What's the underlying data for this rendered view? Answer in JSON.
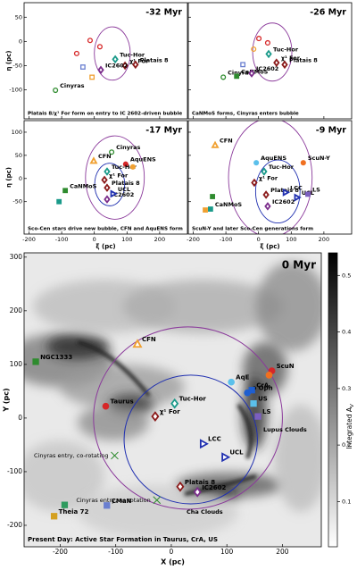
{
  "chart_data": [
    {
      "type": "scatter",
      "title": "-32 Myr",
      "caption": "Platais 8/χ¹ For form on entry to IC 2602-driven bubble",
      "ylabel": "η (pc)",
      "show_xtick_labels": false,
      "show_ytick_labels": true,
      "xlim": [
        -215,
        285
      ],
      "ylim": [
        -160,
        80
      ],
      "xticks": [
        -200,
        -100,
        0,
        100,
        200
      ],
      "yticks": [
        -100,
        -50,
        0,
        50
      ],
      "points": {
        "x": [
          -119,
          64,
          94,
          126,
          20,
          -13,
          17,
          -54,
          -35,
          -7
        ],
        "y": [
          -101,
          -37,
          -50,
          -48,
          -59,
          2,
          -11,
          -25,
          -53,
          -74
        ],
        "labels": [
          "Cinyras",
          "Tuc-Hor",
          "χ¹ For",
          "Platais 8",
          "IC2602",
          null,
          null,
          null,
          null,
          null
        ],
        "colors": [
          "#2e8b2e",
          "#1a9a8a",
          "#8b1a1a",
          "#8b1a1a",
          "#7b2d8b",
          "#d62728",
          "#d62728",
          "#d62728",
          "#6a7fd0",
          "#f0a030"
        ],
        "markers": [
          "open-circle",
          "diamond",
          "diamond",
          "diamond",
          "diamond",
          "open-circle",
          "open-circle",
          "open-circle",
          "open-square",
          "open-square"
        ]
      },
      "circles": [
        {
          "cx": 55,
          "cy": -25,
          "r": 55,
          "color": "#8b3a9b"
        }
      ]
    },
    {
      "type": "scatter",
      "title": "-26 Myr",
      "caption": "CaNMoS forms, Cinyras enters bubble",
      "show_xtick_labels": false,
      "show_ytick_labels": false,
      "xlim": [
        -215,
        285
      ],
      "ylim": [
        -160,
        80
      ],
      "xticks": [
        -200,
        -100,
        0,
        100,
        200
      ],
      "yticks": [
        -100,
        -50,
        0,
        50
      ],
      "points": {
        "x": [
          -108,
          -67,
          -21,
          31,
          55,
          80,
          1,
          28,
          -15,
          -48
        ],
        "y": [
          -74,
          -72,
          -66,
          -26,
          -44,
          -48,
          6,
          -3,
          -16,
          -48
        ],
        "labels": [
          "Cinyras",
          "CaNMoS",
          "IC2602",
          "Tuc-Hor",
          "χ¹ For",
          "Platais 8",
          null,
          null,
          null,
          null
        ],
        "colors": [
          "#2e8b2e",
          "#2e8b2e",
          "#7b2d8b",
          "#1a9a8a",
          "#8b1a1a",
          "#8b1a1a",
          "#d62728",
          "#d62728",
          "#f0a030",
          "#6a7fd0"
        ],
        "markers": [
          "open-circle",
          "square",
          "diamond",
          "diamond",
          "diamond",
          "diamond",
          "open-circle",
          "open-circle",
          "open-circle",
          "open-square"
        ]
      },
      "circles": [
        {
          "cx": 42,
          "cy": -22,
          "r": 60,
          "color": "#8b3a9b"
        }
      ]
    },
    {
      "type": "scatter",
      "title": "-17 Myr",
      "caption": "Sco-Cen stars drive new bubble, CFN and AquENS form",
      "ylabel": "η (pc)",
      "xlabel": "ξ (pc)",
      "show_xtick_labels": true,
      "show_ytick_labels": true,
      "xlim": [
        -215,
        285
      ],
      "ylim": [
        -120,
        125
      ],
      "xticks": [
        -200,
        -100,
        0,
        100,
        200
      ],
      "yticks": [
        -50,
        0,
        50,
        100
      ],
      "points": {
        "x": [
          53,
          -2,
          96,
          39,
          31,
          39,
          39,
          58,
          -89,
          -108,
          118
        ],
        "y": [
          57,
          38,
          31,
          15,
          -3,
          -20,
          -45,
          -33,
          -26,
          -50,
          25
        ],
        "labels": [
          "Cinyras",
          "CFN",
          "AquENS",
          "Tuc-Hor",
          "χ¹ For",
          "Platais 8",
          "IC2602",
          "UCL",
          "CaNMoS",
          null,
          null
        ],
        "colors": [
          "#2e8b2e",
          "#f0a030",
          "#d62728",
          "#1a9a8a",
          "#8b1a1a",
          "#8b1a1a",
          "#7b2d8b",
          "#1f2fb0",
          "#2e8b2e",
          "#1a9a8a",
          "#f0a030"
        ],
        "markers": [
          "open-circle",
          "triangle",
          "circle",
          "diamond",
          "diamond",
          "diamond",
          "diamond",
          "triangle-right",
          "square",
          "square",
          "circle"
        ]
      },
      "circles": [
        {
          "cx": 63,
          "cy": 2,
          "r": 90,
          "color": "#8b3a9b"
        },
        {
          "cx": 47,
          "cy": -13,
          "r": 46,
          "color": "#1f2fb0"
        }
      ]
    },
    {
      "type": "scatter",
      "title": "-9 Myr",
      "caption": "ScuN-Y and later Sco-Cen generations form",
      "xlabel": "ξ (pc)",
      "show_xtick_labels": true,
      "show_ytick_labels": false,
      "xlim": [
        -215,
        285
      ],
      "ylim": [
        -120,
        125
      ],
      "xticks": [
        -200,
        -100,
        0,
        100,
        200
      ],
      "yticks": [
        -50,
        0,
        50,
        100
      ],
      "points": {
        "x": [
          -133,
          -7,
          137,
          17,
          -13,
          23,
          83,
          118,
          151,
          28,
          -147,
          -141,
          -163
        ],
        "y": [
          72,
          34,
          34,
          15,
          -9,
          -35,
          -30,
          -41,
          -34,
          -60,
          -66,
          -39,
          -68
        ],
        "labels": [
          "CFN",
          "AquENS",
          "ScuN-Y",
          "Tuc-Hor",
          "χ¹ For",
          "Platais 8",
          "LCC",
          "UCL",
          "LS",
          "IC2602",
          "CaNMoS",
          null,
          null
        ],
        "colors": [
          "#f0a030",
          "#5bc0eb",
          "#f07020",
          "#1a9a8a",
          "#8b1a1a",
          "#8b1a1a",
          "#1f2fb0",
          "#1f2fb0",
          "#7b5fc0",
          "#7b2d8b",
          "#1a9a8a",
          "#2e8b2e",
          "#f0a030"
        ],
        "markers": [
          "triangle",
          "circle",
          "circle",
          "diamond",
          "diamond",
          "diamond",
          "triangle-right",
          "triangle-right",
          "square",
          "diamond",
          "square",
          "square",
          "square"
        ]
      },
      "circles": [
        {
          "cx": 36,
          "cy": 2,
          "r": 128,
          "color": "#8b3a9b"
        },
        {
          "cx": 59,
          "cy": -28,
          "r": 68,
          "color": "#1f2fb0"
        }
      ]
    },
    {
      "type": "scatter-map",
      "title": "0 Myr",
      "caption": "Present Day: Active Star Formation in Taurus, CrA, US",
      "xlabel": "X (pc)",
      "ylabel": "Y (pc)",
      "show_xtick_labels": true,
      "show_ytick_labels": true,
      "xlim": [
        -265,
        270
      ],
      "ylim": [
        -240,
        308
      ],
      "xticks": [
        -200,
        -100,
        0,
        100,
        200
      ],
      "yticks": [
        -200,
        -100,
        0,
        100,
        200,
        300
      ],
      "colorbar": {
        "label": "Integrated A",
        "label_sub": "V",
        "clim": [
          0.02,
          0.54
        ],
        "ticks": [
          0.1,
          0.2,
          0.3,
          0.4,
          0.5
        ]
      },
      "annotations": [
        "Cha Clouds",
        "Lupus Clouds"
      ],
      "points": {
        "x": [
          -244,
          -61,
          -118,
          6,
          -29,
          108,
          181,
          176,
          137,
          145,
          148,
          156,
          58,
          97,
          16,
          47,
          -116,
          -211,
          -192,
          -102,
          -26
        ],
        "y": [
          105,
          138,
          22,
          27,
          3,
          67,
          88,
          80,
          47,
          52,
          27,
          3,
          -48,
          -73,
          -128,
          -138,
          -163,
          -183,
          -162,
          -70,
          -153
        ],
        "labels": [
          "NGC1333",
          "CFN",
          "Taurus",
          "Tuc-Hor",
          "χ¹ For",
          "AqE",
          "ScuN",
          null,
          "ρ Oph",
          "CrA",
          "US",
          "LS",
          "LCC",
          "UCL",
          "Platais 8",
          "IC2602",
          "CMaN",
          "Theia 72",
          null,
          "Cinyras entry, co-rotating",
          "Cinyras entry, no rotation"
        ],
        "colors": [
          "#2e8b2e",
          "#f0a030",
          "#d62728",
          "#1a9a8a",
          "#8b1a1a",
          "#5bc0eb",
          "#d62728",
          "#f07020",
          "#1f5fd0",
          "#1f5fd0",
          "#5bc0eb",
          "#7b5fc0",
          "#1f2fb0",
          "#1f2fb0",
          "#8b1a1a",
          "#7b2d8b",
          "#6a7fd0",
          "#d4a020",
          "#2e9b5e",
          "#2e8b2e",
          "#2e8b2e"
        ],
        "markers": [
          "square",
          "triangle",
          "circle",
          "diamond",
          "diamond",
          "circle",
          "circle",
          "circle",
          "circle",
          "square",
          "square",
          "square",
          "triangle-right",
          "triangle-right",
          "diamond",
          "diamond",
          "square",
          "square",
          "square",
          "x",
          "x"
        ]
      },
      "circles": [
        {
          "cx": 30,
          "cy": 0,
          "r": 170,
          "color": "#8b3a9b"
        },
        {
          "cx": 35,
          "cy": -40,
          "r": 120,
          "color": "#1f2fb0"
        }
      ]
    }
  ]
}
